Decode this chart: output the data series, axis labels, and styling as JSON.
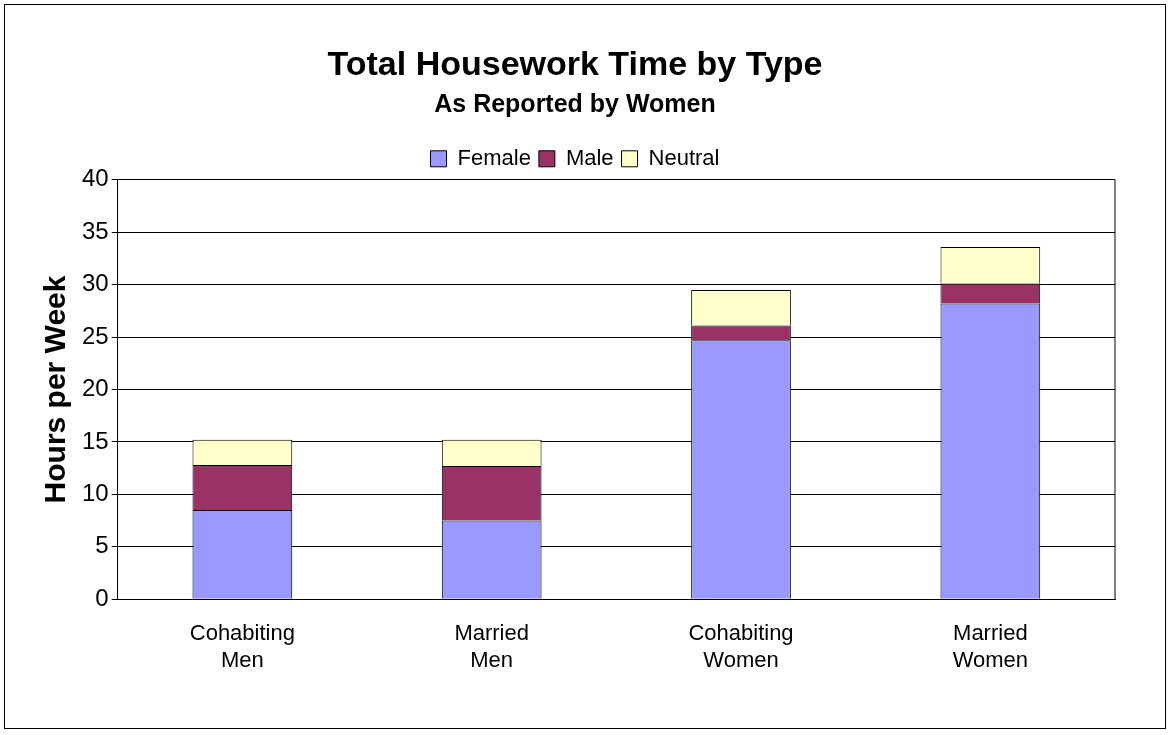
{
  "chart_data": {
    "type": "bar",
    "title": "Total Housework Time by Type",
    "subtitle": "As Reported by Women",
    "ylabel": "Hours per Week",
    "categories": [
      "Cohabiting\nMen",
      "Married\nMen",
      "Cohabiting\nWomen",
      "Married\nWomen"
    ],
    "series": [
      {
        "name": "Female",
        "color": "#9999ff",
        "values": [
          8.5,
          7.5,
          24.7,
          28.2
        ]
      },
      {
        "name": "Male",
        "color": "#993366",
        "values": [
          4.3,
          5.2,
          1.4,
          1.9
        ]
      },
      {
        "name": "Neutral",
        "color": "#ffffcc",
        "values": [
          2.4,
          2.5,
          3.4,
          3.5
        ]
      }
    ],
    "stacked": true,
    "ylim": [
      0,
      40
    ],
    "yticks": [
      0,
      5,
      10,
      15,
      20,
      25,
      30,
      35,
      40
    ],
    "grid": "y",
    "legend": "top"
  }
}
